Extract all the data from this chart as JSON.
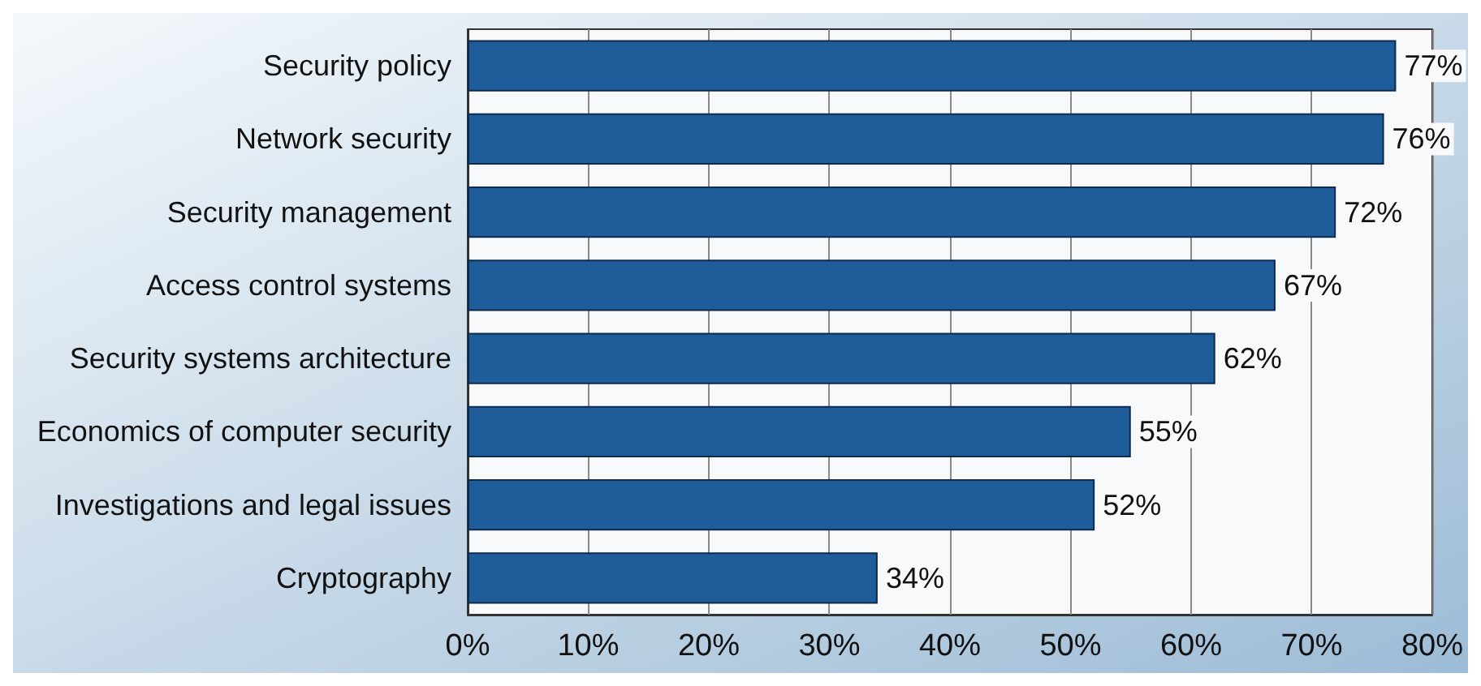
{
  "chart_data": {
    "type": "bar",
    "orientation": "horizontal",
    "categories": [
      "Security policy",
      "Network security",
      "Security management",
      "Access control systems",
      "Security systems architecture",
      "Economics of computer security",
      "Investigations and legal issues",
      "Cryptography"
    ],
    "values": [
      77,
      76,
      72,
      67,
      62,
      55,
      52,
      34
    ],
    "value_labels": [
      "77%",
      "76%",
      "72%",
      "67%",
      "62%",
      "55%",
      "52%",
      "34%"
    ],
    "color": "#1f5c9a",
    "xlim": [
      0,
      80
    ],
    "xticks": [
      {
        "value": 0,
        "label": "0%"
      },
      {
        "value": 10,
        "label": "10%"
      },
      {
        "value": 20,
        "label": "20%"
      },
      {
        "value": 30,
        "label": "30%"
      },
      {
        "value": 40,
        "label": "40%"
      },
      {
        "value": 50,
        "label": "50%"
      },
      {
        "value": 60,
        "label": "60%"
      },
      {
        "value": 70,
        "label": "70%"
      },
      {
        "value": 80,
        "label": "80%"
      }
    ],
    "grid": "x"
  }
}
